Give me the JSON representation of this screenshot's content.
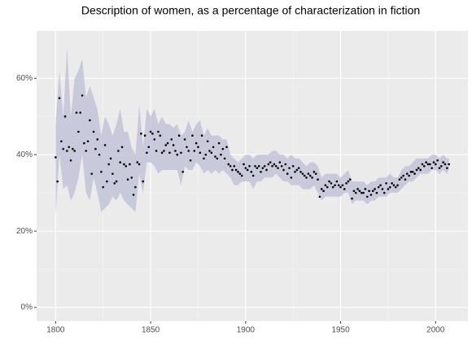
{
  "chart_data": {
    "type": "scatter",
    "title": "Description of women, as a percentage of characterization in fiction",
    "xlim": [
      1790,
      2017
    ],
    "ylim": [
      -3.6,
      72.4
    ],
    "xticks": [
      1800,
      1850,
      1900,
      1950,
      2000
    ],
    "yticks": [
      {
        "value": 0,
        "label": "0%"
      },
      {
        "value": 20,
        "label": "20%"
      },
      {
        "value": 40,
        "label": "40%"
      },
      {
        "value": 60,
        "label": "60%"
      }
    ],
    "grid": true,
    "color": "#000000",
    "x": [
      1800,
      1801,
      1802,
      1803,
      1804,
      1805,
      1806,
      1807,
      1808,
      1809,
      1810,
      1811,
      1812,
      1813,
      1814,
      1815,
      1816,
      1817,
      1818,
      1819,
      1820,
      1821,
      1822,
      1823,
      1824,
      1825,
      1826,
      1827,
      1828,
      1829,
      1830,
      1831,
      1832,
      1833,
      1834,
      1835,
      1836,
      1837,
      1838,
      1839,
      1840,
      1841,
      1842,
      1843,
      1844,
      1845,
      1846,
      1847,
      1848,
      1849,
      1850,
      1851,
      1852,
      1853,
      1854,
      1855,
      1856,
      1857,
      1858,
      1859,
      1860,
      1861,
      1862,
      1863,
      1864,
      1865,
      1866,
      1867,
      1868,
      1869,
      1870,
      1871,
      1872,
      1873,
      1874,
      1875,
      1876,
      1877,
      1878,
      1879,
      1880,
      1881,
      1882,
      1883,
      1884,
      1885,
      1886,
      1887,
      1888,
      1889,
      1890,
      1891,
      1892,
      1893,
      1894,
      1895,
      1896,
      1897,
      1898,
      1899,
      1900,
      1901,
      1902,
      1903,
      1904,
      1905,
      1906,
      1907,
      1908,
      1909,
      1910,
      1911,
      1912,
      1913,
      1914,
      1915,
      1916,
      1917,
      1918,
      1919,
      1920,
      1921,
      1922,
      1923,
      1924,
      1925,
      1926,
      1927,
      1928,
      1929,
      1930,
      1931,
      1932,
      1933,
      1934,
      1935,
      1936,
      1937,
      1938,
      1939,
      1940,
      1941,
      1942,
      1943,
      1944,
      1945,
      1946,
      1947,
      1948,
      1949,
      1950,
      1951,
      1952,
      1953,
      1954,
      1955,
      1956,
      1957,
      1958,
      1959,
      1960,
      1961,
      1962,
      1963,
      1964,
      1965,
      1966,
      1967,
      1968,
      1969,
      1970,
      1971,
      1972,
      1973,
      1974,
      1975,
      1976,
      1977,
      1978,
      1979,
      1980,
      1981,
      1982,
      1983,
      1984,
      1985,
      1986,
      1987,
      1988,
      1989,
      1990,
      1991,
      1992,
      1993,
      1994,
      1995,
      1996,
      1997,
      1998,
      1999,
      2000,
      2001,
      2002,
      2003,
      2004,
      2005,
      2006,
      2007
    ],
    "values": [
      39.3,
      33,
      54.8,
      43.5,
      41.5,
      50,
      41,
      42,
      38.5,
      41.5,
      41,
      51,
      46,
      51,
      55.5,
      43,
      41,
      43.5,
      49,
      35,
      46,
      41.5,
      44,
      40,
      35.5,
      31.5,
      42.5,
      33,
      37.5,
      39,
      35,
      32.5,
      33,
      41,
      38,
      42,
      37.5,
      37,
      33.5,
      37.5,
      34,
      29.5,
      31.5,
      38,
      37.5,
      45.5,
      33,
      45,
      40.5,
      42,
      46,
      45.5,
      44,
      41,
      46,
      45,
      40.5,
      41,
      42.5,
      43,
      40.5,
      44,
      42.5,
      41,
      40,
      45,
      40.5,
      35.5,
      44,
      42,
      41,
      38.5,
      45,
      41,
      43,
      42,
      40.5,
      45,
      39,
      40,
      43.5,
      41,
      40.5,
      42,
      39.5,
      39,
      43,
      40,
      41.5,
      39,
      42,
      37.5,
      37,
      36,
      37,
      36,
      35.5,
      35,
      34.5,
      37.5,
      36.5,
      36,
      37,
      35.5,
      34.5,
      37,
      36.5,
      37,
      35.5,
      36.5,
      37,
      36,
      37.5,
      38,
      37,
      37.5,
      37,
      36.5,
      38,
      37,
      36,
      37.5,
      35,
      36.5,
      34,
      37,
      35.5,
      36,
      36.5,
      35.5,
      35,
      34.5,
      34,
      35,
      34.5,
      34,
      35.5,
      35,
      33.5,
      29,
      31,
      30.5,
      32,
      31.5,
      33,
      32.5,
      31.5,
      32,
      33,
      32,
      31.5,
      32,
      31,
      32.5,
      33,
      33.5,
      28.5,
      30.5,
      30,
      31,
      30.5,
      30,
      30,
      31,
      29,
      30.5,
      29.5,
      30.5,
      31,
      30,
      31.5,
      32,
      31,
      30,
      32.5,
      31,
      31.5,
      32.5,
      32,
      31.5,
      32,
      33.5,
      34,
      34.5,
      33.5,
      35,
      34.5,
      35.5,
      35.5,
      35,
      36,
      36.5,
      36,
      37.5,
      37,
      38,
      37.5,
      37.5,
      36.5,
      38,
      37.5,
      38.5,
      36.5,
      37,
      38,
      37.5,
      36.5,
      37.5
    ],
    "band": {
      "color": "#c3c3d9",
      "x": [
        1800,
        1802,
        1804,
        1806,
        1808,
        1810,
        1812,
        1814,
        1816,
        1818,
        1820,
        1822,
        1824,
        1826,
        1828,
        1830,
        1832,
        1834,
        1836,
        1838,
        1840,
        1842,
        1844,
        1846,
        1848,
        1850,
        1852,
        1854,
        1856,
        1858,
        1860,
        1862,
        1864,
        1866,
        1868,
        1870,
        1872,
        1874,
        1876,
        1878,
        1880,
        1882,
        1884,
        1886,
        1888,
        1890,
        1892,
        1894,
        1896,
        1898,
        1900,
        1902,
        1904,
        1906,
        1908,
        1910,
        1912,
        1914,
        1916,
        1918,
        1920,
        1922,
        1924,
        1926,
        1928,
        1930,
        1932,
        1934,
        1936,
        1938,
        1940,
        1942,
        1944,
        1946,
        1948,
        1950,
        1952,
        1954,
        1956,
        1958,
        1960,
        1962,
        1964,
        1966,
        1968,
        1970,
        1972,
        1974,
        1976,
        1978,
        1980,
        1982,
        1984,
        1986,
        1988,
        1990,
        1992,
        1994,
        1996,
        1998,
        2000,
        2002,
        2004,
        2006,
        2007
      ],
      "upper": [
        48,
        62,
        50,
        68,
        50,
        60,
        62,
        65,
        55,
        58,
        55,
        52,
        45,
        50,
        48,
        45,
        48,
        52,
        46,
        46,
        42,
        40,
        53,
        42,
        52,
        50,
        52,
        48,
        50,
        48,
        48,
        47,
        48,
        45,
        46,
        49,
        46,
        48,
        49,
        45,
        47,
        45,
        45,
        45,
        44,
        44,
        40,
        39,
        38,
        39,
        40,
        40,
        39,
        40,
        40,
        40,
        40,
        41,
        41,
        40,
        40,
        39,
        40,
        39,
        39,
        38,
        37,
        38,
        38,
        37,
        34,
        35,
        35,
        35,
        35,
        34,
        35,
        36,
        33,
        33,
        33,
        33,
        32,
        33,
        33,
        34,
        34,
        34,
        35,
        34,
        34,
        36,
        37,
        37,
        38,
        39,
        39,
        39,
        39,
        40,
        40,
        39,
        40,
        39,
        39
      ],
      "lower": [
        24,
        40,
        31,
        32,
        28,
        30,
        34,
        40,
        30,
        28,
        34,
        30,
        25,
        26,
        27,
        29,
        28,
        30,
        28,
        27,
        26,
        25,
        35,
        30,
        38,
        38,
        37,
        35,
        36,
        36,
        36,
        36,
        36,
        32,
        37,
        36,
        36,
        38,
        37,
        35,
        36,
        35,
        36,
        35,
        36,
        35,
        34,
        32,
        32,
        33,
        33,
        33,
        31,
        33,
        33,
        34,
        34,
        34,
        35,
        34,
        33,
        33,
        32,
        32,
        32,
        31,
        31,
        31,
        32,
        30,
        28,
        29,
        29,
        29,
        29,
        29,
        30,
        30,
        27,
        28,
        28,
        28,
        27,
        28,
        28,
        29,
        29,
        29,
        30,
        30,
        30,
        31,
        32,
        33,
        33,
        34,
        35,
        35,
        35,
        36,
        36,
        35,
        36,
        35,
        36
      ]
    }
  }
}
